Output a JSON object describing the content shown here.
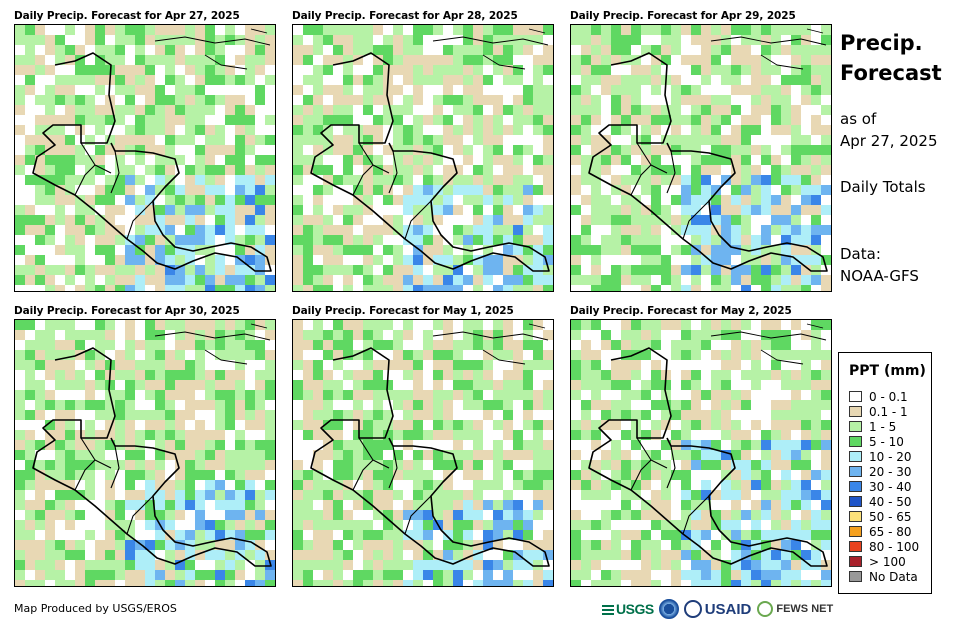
{
  "panels": [
    {
      "title": "Daily Precip. Forecast for Apr 27, 2025",
      "seed": 11,
      "wet": 0.35,
      "south": 0.55
    },
    {
      "title": "Daily Precip. Forecast for Apr 28, 2025",
      "seed": 23,
      "wet": 0.3,
      "south": 0.6
    },
    {
      "title": "Daily Precip. Forecast for Apr 29, 2025",
      "seed": 37,
      "wet": 0.45,
      "south": 0.55
    },
    {
      "title": "Daily Precip. Forecast for Apr 30, 2025",
      "seed": 41,
      "wet": 0.4,
      "south": 0.6
    },
    {
      "title": "Daily Precip. Forecast for May 1, 2025",
      "seed": 53,
      "wet": 0.5,
      "south": 0.65
    },
    {
      "title": "Daily Precip. Forecast for May 2, 2025",
      "seed": 67,
      "wet": 0.3,
      "south": 0.45
    }
  ],
  "side": {
    "title": "Precip. Forecast",
    "as_of_label": "as of",
    "date": "Apr 27, 2025",
    "totals": "Daily Totals",
    "data_label": "Data:",
    "data_source": "NOAA-GFS"
  },
  "legend": {
    "title": "PPT (mm)",
    "items": [
      {
        "label": "0 - 0.1",
        "color": "#ffffff"
      },
      {
        "label": "0.1 - 1",
        "color": "#e8d8b4"
      },
      {
        "label": "1 - 5",
        "color": "#b6f2a6"
      },
      {
        "label": "5 - 10",
        "color": "#5fd862"
      },
      {
        "label": "10 - 20",
        "color": "#aeeef8"
      },
      {
        "label": "20 - 30",
        "color": "#6eb4f0"
      },
      {
        "label": "30 - 40",
        "color": "#3a86e8"
      },
      {
        "label": "40 - 50",
        "color": "#1f55c8"
      },
      {
        "label": "50 - 65",
        "color": "#fce17a"
      },
      {
        "label": "65 - 80",
        "color": "#f5a01e"
      },
      {
        "label": "80 - 100",
        "color": "#e8421e"
      },
      {
        "label": "> 100",
        "color": "#a8202a"
      },
      {
        "label": "No Data",
        "color": "#999999"
      }
    ]
  },
  "footer": {
    "credit": "Map Produced by USGS/EROS",
    "logo_usgs": "USGS",
    "logo_usaid": "USAID",
    "logo_fews": "FEWS NET"
  }
}
